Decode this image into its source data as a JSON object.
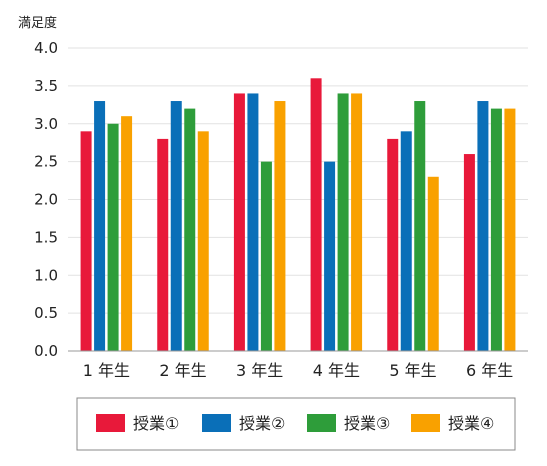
{
  "chart_data": {
    "type": "bar",
    "ylabel": "満足度",
    "xlabel": "",
    "ylim": [
      0,
      4.0
    ],
    "yticks": [
      "0.0",
      "0.5",
      "1.0",
      "1.5",
      "2.0",
      "2.5",
      "3.0",
      "3.5",
      "4.0"
    ],
    "categories": [
      "1 年生",
      "2 年生",
      "3 年生",
      "4 年生",
      "5 年生",
      "6 年生"
    ],
    "series": [
      {
        "name": "授業①",
        "color": "#e8193a",
        "values": [
          2.9,
          2.8,
          3.4,
          3.6,
          2.8,
          2.6
        ]
      },
      {
        "name": "授業②",
        "color": "#0a6fb8",
        "values": [
          3.3,
          3.3,
          3.4,
          2.5,
          2.9,
          3.3
        ]
      },
      {
        "name": "授業③",
        "color": "#2e9d3a",
        "values": [
          3.0,
          3.2,
          2.5,
          3.4,
          3.3,
          3.2
        ]
      },
      {
        "name": "授業④",
        "color": "#f9a100",
        "values": [
          3.1,
          2.9,
          3.3,
          3.4,
          2.3,
          3.2
        ]
      }
    ],
    "grid": true,
    "legend_position": "bottom"
  }
}
